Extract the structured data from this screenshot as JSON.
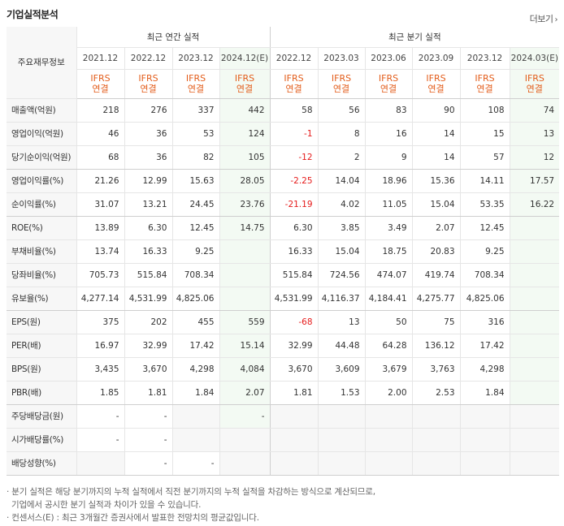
{
  "header": {
    "title": "기업실적분석",
    "more_label": "더보기",
    "more_arrow": "›"
  },
  "table": {
    "row_header_label": "주요재무정보",
    "groups": [
      "최근 연간 실적",
      "최근 분기 실적"
    ],
    "periods": [
      "2021.12",
      "2022.12",
      "2023.12",
      "2024.12(E)",
      "2022.12",
      "2023.03",
      "2023.06",
      "2023.09",
      "2023.12",
      "2024.03(E)"
    ],
    "ifrs": [
      "IFRS",
      "IFRS",
      "IFRS",
      "IFRS",
      "IFRS",
      "IFRS",
      "IFRS",
      "IFRS",
      "IFRS",
      "IFRS"
    ],
    "consol": [
      "연결",
      "연결",
      "연결",
      "연결",
      "연결",
      "연결",
      "연결",
      "연결",
      "연결",
      "연결"
    ],
    "rows": [
      {
        "label": "매출액(억원)",
        "values": [
          "218",
          "276",
          "337",
          "442",
          "58",
          "56",
          "83",
          "90",
          "108",
          "74"
        ]
      },
      {
        "label": "영업이익(억원)",
        "values": [
          "46",
          "36",
          "53",
          "124",
          "-1",
          "8",
          "16",
          "14",
          "15",
          "13"
        ]
      },
      {
        "label": "당기순이익(억원)",
        "values": [
          "68",
          "36",
          "82",
          "105",
          "-12",
          "2",
          "9",
          "14",
          "57",
          "12"
        ]
      },
      {
        "label": "영업이익률(%)",
        "values": [
          "21.26",
          "12.99",
          "15.63",
          "28.05",
          "-2.25",
          "14.04",
          "18.96",
          "15.36",
          "14.11",
          "17.57"
        ]
      },
      {
        "label": "순이익률(%)",
        "values": [
          "31.07",
          "13.21",
          "24.45",
          "23.76",
          "-21.19",
          "4.02",
          "11.05",
          "15.04",
          "53.35",
          "16.22"
        ]
      },
      {
        "label": "ROE(%)",
        "values": [
          "13.89",
          "6.30",
          "12.45",
          "14.75",
          "6.30",
          "3.85",
          "3.49",
          "2.07",
          "12.45",
          ""
        ]
      },
      {
        "label": "부채비율(%)",
        "values": [
          "13.74",
          "16.33",
          "9.25",
          "",
          "16.33",
          "15.04",
          "18.75",
          "20.83",
          "9.25",
          ""
        ]
      },
      {
        "label": "당좌비율(%)",
        "values": [
          "705.73",
          "515.84",
          "708.34",
          "",
          "515.84",
          "724.56",
          "474.07",
          "419.74",
          "708.34",
          ""
        ]
      },
      {
        "label": "유보율(%)",
        "values": [
          "4,277.14",
          "4,531.99",
          "4,825.06",
          "",
          "4,531.99",
          "4,116.37",
          "4,184.41",
          "4,275.77",
          "4,825.06",
          ""
        ]
      },
      {
        "label": "EPS(원)",
        "values": [
          "375",
          "202",
          "455",
          "559",
          "-68",
          "13",
          "50",
          "75",
          "316",
          ""
        ]
      },
      {
        "label": "PER(배)",
        "values": [
          "16.97",
          "32.99",
          "17.42",
          "15.14",
          "32.99",
          "44.48",
          "64.28",
          "136.12",
          "17.42",
          ""
        ]
      },
      {
        "label": "BPS(원)",
        "values": [
          "3,435",
          "3,670",
          "4,298",
          "4,084",
          "3,670",
          "3,609",
          "3,679",
          "3,763",
          "4,298",
          ""
        ]
      },
      {
        "label": "PBR(배)",
        "values": [
          "1.85",
          "1.81",
          "1.84",
          "2.07",
          "1.81",
          "1.53",
          "2.00",
          "2.53",
          "1.84",
          ""
        ]
      },
      {
        "label": "주당배당금(원)",
        "values": [
          "-",
          "-",
          "",
          "-",
          "",
          "",
          "",
          "",
          "",
          ""
        ]
      },
      {
        "label": "시가배당률(%)",
        "values": [
          "-",
          "-",
          "",
          "",
          "",
          "",
          "",
          "",
          "",
          ""
        ]
      },
      {
        "label": "배당성향(%)",
        "values": [
          "",
          "-",
          "-",
          "",
          "",
          "",
          "",
          "",
          "",
          ""
        ]
      }
    ]
  },
  "notes": {
    "line1": "분기 실적은 해당 분기까지의 누적 실적에서 직전 분기까지의 누적 실적을 차감하는 방식으로 계산되므로,",
    "line2": "기업에서 공시한 분기 실적과 차이가 있을 수 있습니다.",
    "line3": "컨센서스(E) : 최근 3개월간 증권사에서 발표한 전망치의 평균값입니다."
  },
  "colors": {
    "ifrs": "#e35d1b",
    "negative": "#e61b1b",
    "estimate_bg": "#f3faf3"
  }
}
